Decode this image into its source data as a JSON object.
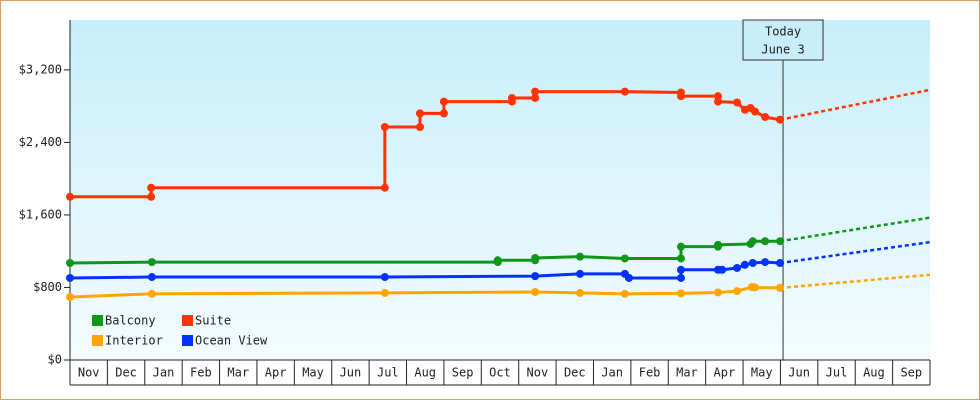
{
  "chart_data": {
    "type": "line",
    "xlim": [
      0,
      23
    ],
    "xticks": [
      {
        "value": 0,
        "label": "Nov"
      },
      {
        "value": 1,
        "label": "Dec"
      },
      {
        "value": 2,
        "label": "Jan"
      },
      {
        "value": 3,
        "label": "Feb"
      },
      {
        "value": 4,
        "label": "Mar"
      },
      {
        "value": 5,
        "label": "Apr"
      },
      {
        "value": 6,
        "label": "May"
      },
      {
        "value": 7,
        "label": "Jun"
      },
      {
        "value": 8,
        "label": "Jul"
      },
      {
        "value": 9,
        "label": "Aug"
      },
      {
        "value": 10,
        "label": "Sep"
      },
      {
        "value": 11,
        "label": "Oct"
      },
      {
        "value": 12,
        "label": "Nov"
      },
      {
        "value": 13,
        "label": "Dec"
      },
      {
        "value": 14,
        "label": "Jan"
      },
      {
        "value": 15,
        "label": "Feb"
      },
      {
        "value": 16,
        "label": "Mar"
      },
      {
        "value": 17,
        "label": "Apr"
      },
      {
        "value": 18,
        "label": "May"
      },
      {
        "value": 19,
        "label": "Jun"
      },
      {
        "value": 20,
        "label": "Jul"
      },
      {
        "value": 21,
        "label": "Aug"
      },
      {
        "value": 22,
        "label": "Sep"
      }
    ],
    "ylim": [
      0,
      3750
    ],
    "yticks": [
      {
        "value": 0,
        "label": "$0"
      },
      {
        "value": 800,
        "label": "$800"
      },
      {
        "value": 1600,
        "label": "$1,600"
      },
      {
        "value": 2400,
        "label": "$2,400"
      },
      {
        "value": 3200,
        "label": "$3,200"
      }
    ],
    "legend": "lower left",
    "today": {
      "x": 19.07,
      "label": [
        "Today",
        "June 3"
      ]
    },
    "series": [
      {
        "name": "Balcony",
        "color": "#109618",
        "x": [
          0,
          2.19,
          11.44,
          11.44,
          12.44,
          12.44,
          13.64,
          14.84,
          16.34,
          16.34,
          17.33,
          17.33,
          18.2,
          18.26,
          18.59,
          18.99
        ],
        "values": [
          1070,
          1080,
          1080,
          1100,
          1100,
          1125,
          1140,
          1120,
          1120,
          1250,
          1250,
          1270,
          1280,
          1310,
          1310,
          1310
        ],
        "projection": {
          "x": 23,
          "value": 1570
        }
      },
      {
        "name": "Suite",
        "color": "#ff3300",
        "x": [
          0,
          2.17,
          2.17,
          8.42,
          8.42,
          9.36,
          9.36,
          10.0,
          10.0,
          11.82,
          11.82,
          12.44,
          12.44,
          14.84,
          16.34,
          16.34,
          17.33,
          17.33,
          17.84,
          18.05,
          18.2,
          18.32,
          18.59,
          18.99
        ],
        "values": [
          1800,
          1800,
          1900,
          1900,
          2570,
          2570,
          2720,
          2720,
          2850,
          2850,
          2890,
          2890,
          2960,
          2960,
          2950,
          2910,
          2910,
          2850,
          2840,
          2760,
          2780,
          2740,
          2680,
          2650
        ],
        "projection": {
          "x": 23,
          "value": 2980
        }
      },
      {
        "name": "Interior",
        "color": "#ffa500",
        "x": [
          0,
          2.19,
          8.42,
          12.44,
          13.64,
          14.84,
          16.34,
          17.33,
          17.84,
          18.24,
          18.32,
          18.99
        ],
        "values": [
          695,
          730,
          740,
          750,
          740,
          730,
          735,
          745,
          760,
          805,
          800,
          795
        ],
        "projection": {
          "x": 23,
          "value": 940
        }
      },
      {
        "name": "Ocean View",
        "color": "#0033ff",
        "x": [
          0,
          2.19,
          8.42,
          12.44,
          13.64,
          14.84,
          14.95,
          16.34,
          16.34,
          17.33,
          17.44,
          17.84,
          18.05,
          18.26,
          18.59,
          18.99
        ],
        "values": [
          905,
          915,
          915,
          925,
          950,
          950,
          905,
          905,
          995,
          995,
          995,
          1015,
          1050,
          1070,
          1080,
          1070
        ],
        "projection": {
          "x": 23,
          "value": 1300
        }
      }
    ]
  }
}
